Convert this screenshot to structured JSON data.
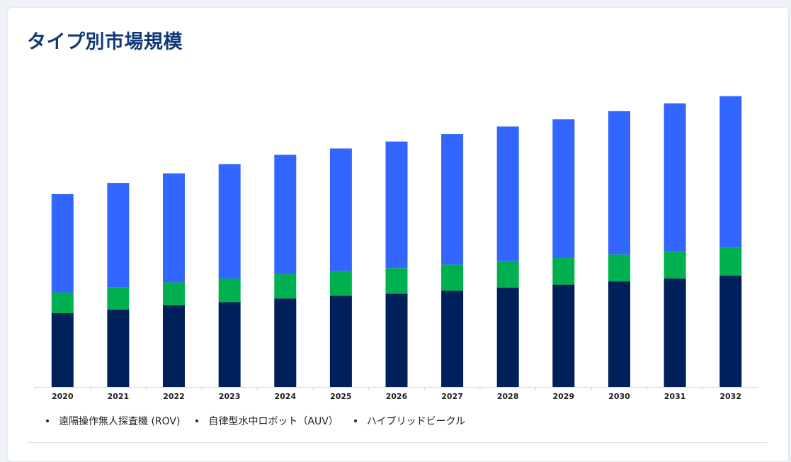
{
  "title": "タイプ別市場規模",
  "legend": [
    {
      "label": "遠隔操作無人探査機 (ROV)"
    },
    {
      "label": "自律型水中ロボット（AUV）"
    },
    {
      "label": "ハイブリッドビークル"
    }
  ],
  "chart_data": {
    "type": "bar",
    "stacked": true,
    "categories": [
      "2020",
      "2021",
      "2022",
      "2023",
      "2024",
      "2025",
      "2026",
      "2027",
      "2028",
      "2029",
      "2030",
      "2031",
      "2032"
    ],
    "series": [
      {
        "name": "遠隔操作無人探査機 (ROV)",
        "color": "#00205b",
        "values": [
          2.55,
          2.68,
          2.82,
          2.93,
          3.06,
          3.15,
          3.23,
          3.33,
          3.44,
          3.54,
          3.65,
          3.75,
          3.85
        ]
      },
      {
        "name": "自律型水中ロボット（AUV）",
        "color": "#00b050",
        "values": [
          0.72,
          0.77,
          0.8,
          0.82,
          0.84,
          0.86,
          0.88,
          0.9,
          0.91,
          0.92,
          0.93,
          0.94,
          0.96
        ]
      },
      {
        "name": "ハイブリッドビークル",
        "color": "#3366ff",
        "values": [
          3.4,
          3.61,
          3.77,
          3.96,
          4.13,
          4.24,
          4.38,
          4.52,
          4.66,
          4.8,
          4.96,
          5.12,
          5.25
        ]
      }
    ],
    "ylim": [
      0,
      10.2
    ],
    "grid": false,
    "legend_position": "bottom"
  }
}
